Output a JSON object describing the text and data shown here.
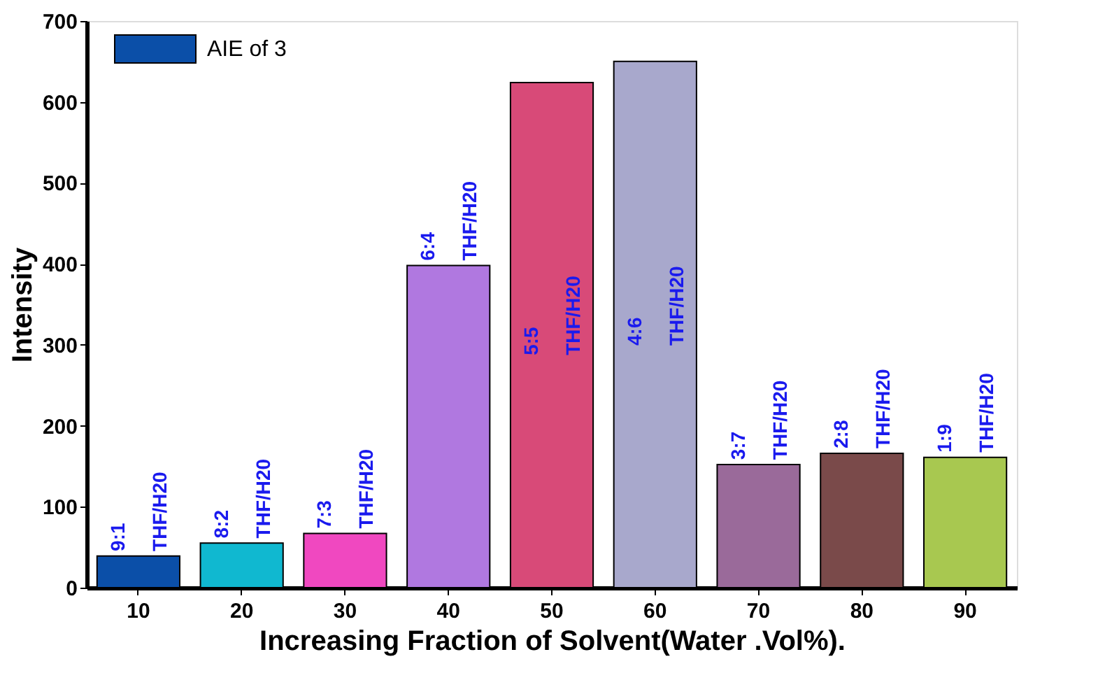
{
  "chart_data": {
    "type": "bar",
    "xlabel": "Increasing Fraction of Solvent(Water .Vol%).",
    "ylabel": "Intensity",
    "categories": [
      "10",
      "20",
      "30",
      "40",
      "50",
      "60",
      "70",
      "80",
      "90"
    ],
    "series": [
      {
        "name": "AIE of 3",
        "color": "#0b4fa8",
        "values": [
          39,
          55,
          67,
          398,
          624,
          650,
          152,
          166,
          161
        ],
        "colors": [
          "#0b4fa8",
          "#10b8d0",
          "#f048c0",
          "#b078e0",
          "#d84a78",
          "#a8a8cc",
          "#9a6a9a",
          "#7a4a4a",
          "#a8c850"
        ]
      }
    ],
    "ylim": [
      0,
      700
    ],
    "yticks": [
      0,
      100,
      200,
      300,
      400,
      500,
      600,
      700
    ],
    "grid": false,
    "legend": "top left",
    "annotations": [
      {
        "text": "9:1",
        "x": "10",
        "y": 45
      },
      {
        "text": "THF/H20",
        "x": "10",
        "y": 45
      },
      {
        "text": "8:2",
        "x": "20",
        "y": 61
      },
      {
        "text": "THF/H20",
        "x": "20",
        "y": 61
      },
      {
        "text": "7:3",
        "x": "30",
        "y": 73
      },
      {
        "text": "THF/H20",
        "x": "30",
        "y": 73
      },
      {
        "text": "6:4",
        "x": "40",
        "y": 404
      },
      {
        "text": "THF/H20",
        "x": "40",
        "y": 404
      },
      "5:5",
      "THF/H20",
      "4:6",
      "THF/H20",
      {
        "text": "3:7",
        "x": "70",
        "y": 158
      },
      {
        "text": "THF/H20",
        "x": "70",
        "y": 158
      },
      {
        "text": "2:8",
        "x": "80",
        "y": 172
      },
      {
        "text": "THF/H20",
        "x": "80",
        "y": 172
      },
      {
        "text": "1:9",
        "x": "90",
        "y": 167
      },
      {
        "text": "THF/H20",
        "x": "90",
        "y": 167
      }
    ]
  }
}
